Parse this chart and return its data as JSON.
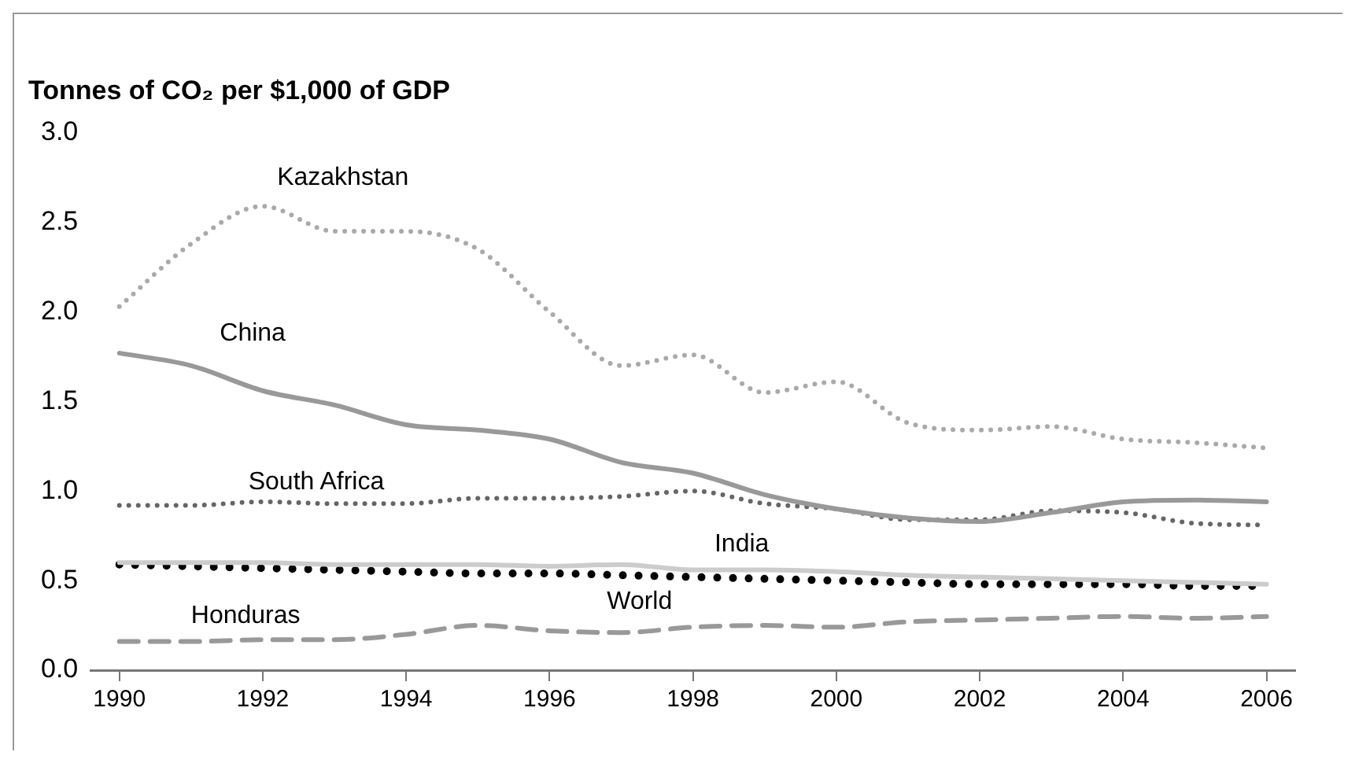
{
  "chart_data": {
    "type": "line",
    "title": "Tonnes of CO₂ per $1,000 of GDP",
    "x": [
      1990,
      1991,
      1992,
      1993,
      1994,
      1995,
      1996,
      1997,
      1998,
      1999,
      2000,
      2001,
      2002,
      2003,
      2004,
      2005,
      2006
    ],
    "xlim": [
      1989.6,
      2006.4
    ],
    "xticks": [
      1990,
      1992,
      1994,
      1996,
      1998,
      2000,
      2002,
      2004,
      2006
    ],
    "ylim": [
      0,
      3
    ],
    "yticks": [
      {
        "value": 0,
        "label": "0.0"
      },
      {
        "value": 0.5,
        "label": "0.5"
      },
      {
        "value": 1,
        "label": "1.0"
      },
      {
        "value": 1.5,
        "label": "1.5"
      },
      {
        "value": 2,
        "label": "2.0"
      },
      {
        "value": 2.5,
        "label": "2.5"
      },
      {
        "value": 3,
        "label": "3.0"
      }
    ],
    "grid": false,
    "legend": false,
    "marker": "none",
    "series": [
      {
        "name": "Kazakhstan",
        "color": "#aaaaaa",
        "line_style": "dotted",
        "values": [
          2.03,
          2.38,
          2.59,
          2.45,
          2.45,
          2.35,
          2.0,
          1.7,
          1.76,
          1.55,
          1.61,
          1.38,
          1.34,
          1.36,
          1.29,
          1.27,
          1.24
        ]
      },
      {
        "name": "China",
        "color": "#999999",
        "line_style": "solid",
        "values": [
          1.77,
          1.7,
          1.56,
          1.48,
          1.37,
          1.34,
          1.29,
          1.16,
          1.1,
          0.98,
          0.9,
          0.85,
          0.83,
          0.88,
          0.94,
          0.95,
          0.94
        ]
      },
      {
        "name": "South Africa",
        "color": "#666666",
        "line_style": "dotted",
        "values": [
          0.92,
          0.92,
          0.94,
          0.93,
          0.93,
          0.96,
          0.96,
          0.97,
          1.0,
          0.93,
          0.9,
          0.84,
          0.84,
          0.89,
          0.88,
          0.82,
          0.81
        ]
      },
      {
        "name": "India",
        "color": "#cccccc",
        "line_style": "solid",
        "values": [
          0.6,
          0.6,
          0.6,
          0.59,
          0.59,
          0.59,
          0.58,
          0.59,
          0.56,
          0.56,
          0.55,
          0.53,
          0.52,
          0.51,
          0.5,
          0.49,
          0.48
        ]
      },
      {
        "name": "World",
        "color": "#000000",
        "line_style": "dotted",
        "values": [
          0.59,
          0.58,
          0.57,
          0.56,
          0.55,
          0.54,
          0.54,
          0.53,
          0.52,
          0.51,
          0.5,
          0.49,
          0.48,
          0.48,
          0.48,
          0.47,
          0.47
        ]
      },
      {
        "name": "Honduras",
        "color": "#999999",
        "line_style": "dashed",
        "values": [
          0.16,
          0.16,
          0.17,
          0.17,
          0.2,
          0.25,
          0.22,
          0.21,
          0.24,
          0.25,
          0.24,
          0.27,
          0.28,
          0.29,
          0.3,
          0.29,
          0.3
        ]
      }
    ]
  }
}
